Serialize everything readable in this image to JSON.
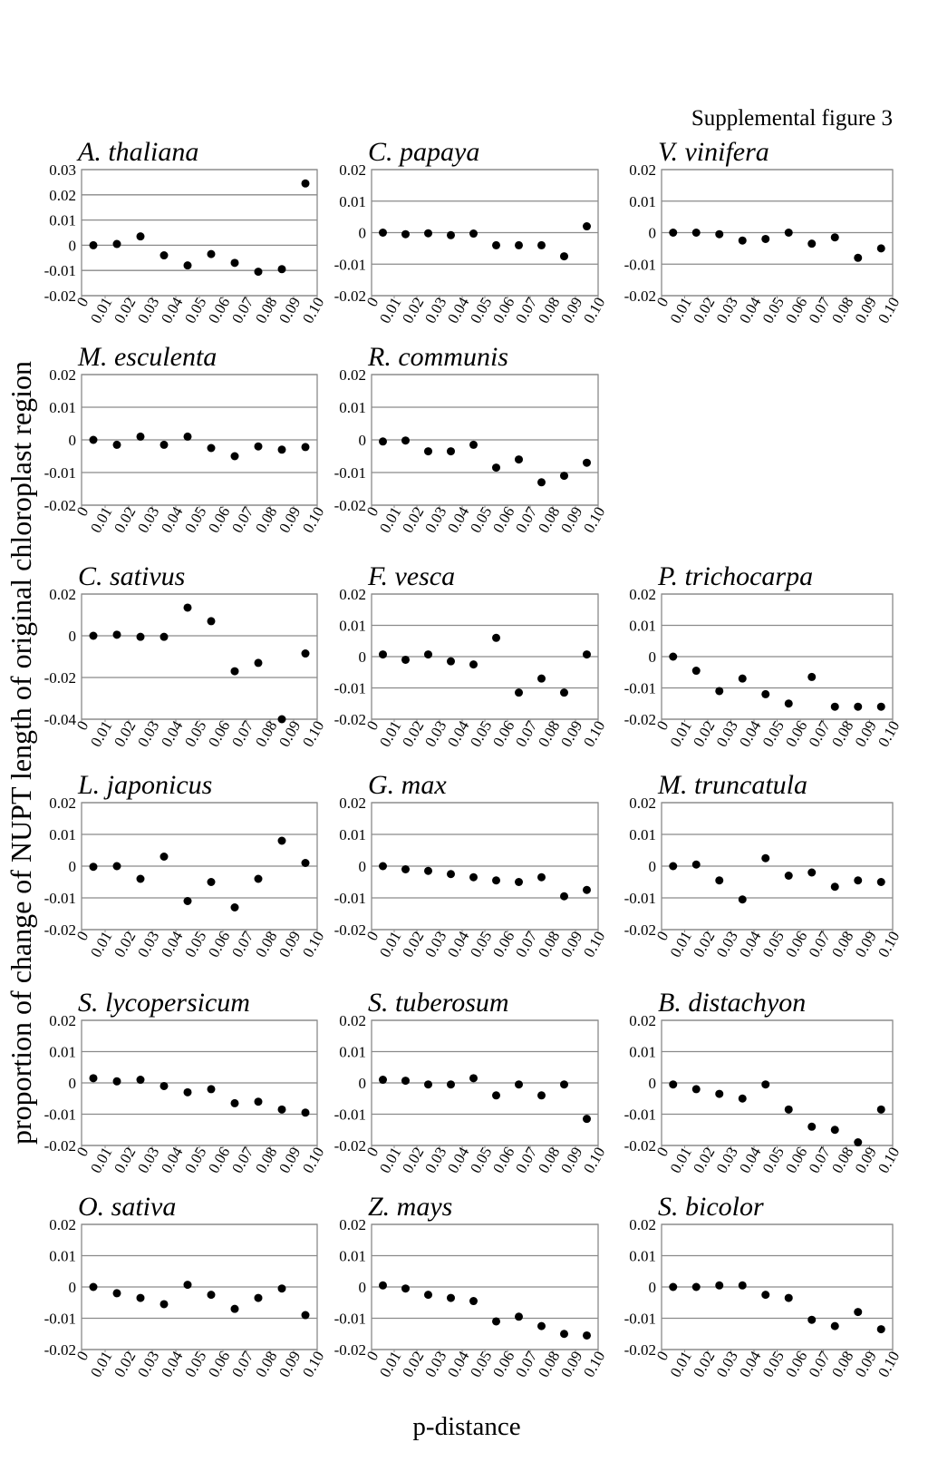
{
  "figure_label": "Supplemental figure 3",
  "ylabel": "proportion of change of NUPT length of original chloroplast region",
  "xlabel": "p-distance",
  "chart_data": [
    {
      "type": "scatter",
      "title": "A. thaliana",
      "x": [
        0.005,
        0.015,
        0.025,
        0.035,
        0.045,
        0.055,
        0.065,
        0.075,
        0.085,
        0.095
      ],
      "y": [
        0,
        0.0005,
        0.0035,
        -0.004,
        -0.008,
        -0.0035,
        -0.007,
        -0.0105,
        -0.0095,
        0.0245
      ],
      "color": "#000000",
      "xlim": [
        0,
        0.1
      ],
      "xticks": [
        0,
        0.01,
        0.02,
        0.03,
        0.04,
        0.05,
        0.06,
        0.07,
        0.08,
        0.09,
        {
          "value": 0.1,
          "label": "0.10"
        }
      ],
      "ylim": [
        -0.02,
        0.03
      ],
      "yticks": [
        0.03,
        0.02,
        0.01,
        0,
        -0.01,
        -0.02
      ],
      "grid": true
    },
    {
      "type": "scatter",
      "title": "C. papaya",
      "x": [
        0.005,
        0.015,
        0.025,
        0.035,
        0.045,
        0.055,
        0.065,
        0.075,
        0.085,
        0.095
      ],
      "y": [
        0,
        -0.0005,
        -0.0002,
        -0.0008,
        -0.0003,
        -0.004,
        -0.004,
        -0.004,
        -0.0075,
        0.002
      ],
      "color": "#000000",
      "xlim": [
        0,
        0.1
      ],
      "xticks": [
        0,
        0.01,
        0.02,
        0.03,
        0.04,
        0.05,
        0.06,
        0.07,
        0.08,
        0.09,
        {
          "value": 0.1,
          "label": "0.10"
        }
      ],
      "ylim": [
        -0.02,
        0.02
      ],
      "yticks": [
        0.02,
        0.01,
        0,
        -0.01,
        -0.02
      ],
      "grid": true
    },
    {
      "type": "scatter",
      "title": "V. vinifera",
      "x": [
        0.005,
        0.015,
        0.025,
        0.035,
        0.045,
        0.055,
        0.065,
        0.075,
        0.085,
        0.095
      ],
      "y": [
        0,
        0,
        -0.0005,
        -0.0025,
        -0.002,
        0,
        -0.0035,
        -0.0015,
        -0.008,
        -0.005
      ],
      "color": "#000000",
      "xlim": [
        0,
        0.1
      ],
      "xticks": [
        0,
        0.01,
        0.02,
        0.03,
        0.04,
        0.05,
        0.06,
        0.07,
        0.08,
        0.09,
        {
          "value": 0.1,
          "label": "0.10"
        }
      ],
      "ylim": [
        -0.02,
        0.02
      ],
      "yticks": [
        0.02,
        0.01,
        0,
        -0.01,
        -0.02
      ],
      "grid": true
    },
    {
      "type": "scatter",
      "title": "M. esculenta",
      "x": [
        0.005,
        0.015,
        0.025,
        0.035,
        0.045,
        0.055,
        0.065,
        0.075,
        0.085,
        0.095
      ],
      "y": [
        0,
        -0.0015,
        0.001,
        -0.0015,
        0.001,
        -0.0025,
        -0.005,
        -0.002,
        -0.003,
        -0.0022
      ],
      "color": "#000000",
      "xlim": [
        0,
        0.1
      ],
      "xticks": [
        0,
        0.01,
        0.02,
        0.03,
        0.04,
        0.05,
        0.06,
        0.07,
        0.08,
        0.09,
        {
          "value": 0.1,
          "label": "0.10"
        }
      ],
      "ylim": [
        -0.02,
        0.02
      ],
      "yticks": [
        0.02,
        0.01,
        0,
        -0.01,
        -0.02
      ],
      "grid": true
    },
    {
      "type": "scatter",
      "title": "R. communis",
      "x": [
        0.005,
        0.015,
        0.025,
        0.035,
        0.045,
        0.055,
        0.065,
        0.075,
        0.085,
        0.095
      ],
      "y": [
        -0.0005,
        -0.0002,
        -0.0035,
        -0.0035,
        -0.0015,
        -0.0085,
        -0.006,
        -0.013,
        -0.011,
        -0.007
      ],
      "color": "#000000",
      "xlim": [
        0,
        0.1
      ],
      "xticks": [
        0,
        0.01,
        0.02,
        0.03,
        0.04,
        0.05,
        0.06,
        0.07,
        0.08,
        0.09,
        {
          "value": 0.1,
          "label": "0.10"
        }
      ],
      "ylim": [
        -0.02,
        0.02
      ],
      "yticks": [
        0.02,
        0.01,
        0,
        -0.01,
        -0.02
      ],
      "grid": true
    },
    {
      "type": "scatter",
      "title": "C. sativus",
      "x": [
        0.005,
        0.015,
        0.025,
        0.035,
        0.045,
        0.055,
        0.065,
        0.075,
        0.085,
        0.095
      ],
      "y": [
        0,
        0.0005,
        -0.0005,
        -0.0005,
        0.0135,
        0.007,
        -0.017,
        -0.013,
        -0.04,
        -0.0085
      ],
      "color": "#000000",
      "xlim": [
        0,
        0.1
      ],
      "xticks": [
        0,
        0.01,
        0.02,
        0.03,
        0.04,
        0.05,
        0.06,
        0.07,
        0.08,
        0.09,
        {
          "value": 0.1,
          "label": "0.10"
        }
      ],
      "ylim": [
        -0.04,
        0.02
      ],
      "yticks": [
        0.02,
        0,
        -0.02,
        -0.04
      ],
      "grid": true
    },
    {
      "type": "scatter",
      "title": "F. vesca",
      "x": [
        0.005,
        0.015,
        0.025,
        0.035,
        0.045,
        0.055,
        0.065,
        0.075,
        0.085,
        0.095
      ],
      "y": [
        0.0007,
        -0.001,
        0.0007,
        -0.0015,
        -0.0025,
        0.006,
        -0.0115,
        -0.007,
        -0.0115,
        0.0007
      ],
      "color": "#000000",
      "xlim": [
        0,
        0.1
      ],
      "xticks": [
        0,
        0.01,
        0.02,
        0.03,
        0.04,
        0.05,
        0.06,
        0.07,
        0.08,
        0.09,
        {
          "value": 0.1,
          "label": "0.10"
        }
      ],
      "ylim": [
        -0.02,
        0.02
      ],
      "yticks": [
        0.02,
        0.01,
        0,
        -0.01,
        -0.02
      ],
      "grid": true
    },
    {
      "type": "scatter",
      "title": "P. trichocarpa",
      "x": [
        0.005,
        0.015,
        0.025,
        0.035,
        0.045,
        0.055,
        0.065,
        0.075,
        0.085,
        0.095
      ],
      "y": [
        0,
        -0.0045,
        -0.011,
        -0.007,
        -0.012,
        -0.015,
        -0.0065,
        -0.016,
        -0.016,
        -0.016
      ],
      "color": "#000000",
      "xlim": [
        0,
        0.1
      ],
      "xticks": [
        0,
        0.01,
        0.02,
        0.03,
        0.04,
        0.05,
        0.06,
        0.07,
        0.08,
        0.09,
        {
          "value": 0.1,
          "label": "0.10"
        }
      ],
      "ylim": [
        -0.02,
        0.02
      ],
      "yticks": [
        0.02,
        0.01,
        0,
        -0.01,
        -0.02
      ],
      "grid": true
    },
    {
      "type": "scatter",
      "title": "L. japonicus",
      "x": [
        0.005,
        0.015,
        0.025,
        0.035,
        0.045,
        0.055,
        0.065,
        0.075,
        0.085,
        0.095
      ],
      "y": [
        -0.0002,
        0,
        -0.004,
        0.003,
        -0.011,
        -0.005,
        -0.013,
        -0.004,
        0.008,
        0.001
      ],
      "color": "#000000",
      "xlim": [
        0,
        0.1
      ],
      "xticks": [
        0,
        0.01,
        0.02,
        0.03,
        0.04,
        0.05,
        0.06,
        0.07,
        0.08,
        0.09,
        {
          "value": 0.1,
          "label": "0.10"
        }
      ],
      "ylim": [
        -0.02,
        0.02
      ],
      "yticks": [
        0.02,
        0.01,
        0,
        -0.01,
        -0.02
      ],
      "grid": true
    },
    {
      "type": "scatter",
      "title": "G. max",
      "x": [
        0.005,
        0.015,
        0.025,
        0.035,
        0.045,
        0.055,
        0.065,
        0.075,
        0.085,
        0.095
      ],
      "y": [
        0,
        -0.001,
        -0.0015,
        -0.0025,
        -0.0035,
        -0.0045,
        -0.005,
        -0.0035,
        -0.0095,
        -0.0075
      ],
      "color": "#000000",
      "xlim": [
        0,
        0.1
      ],
      "xticks": [
        0,
        0.01,
        0.02,
        0.03,
        0.04,
        0.05,
        0.06,
        0.07,
        0.08,
        0.09,
        {
          "value": 0.1,
          "label": "0.10"
        }
      ],
      "ylim": [
        -0.02,
        0.02
      ],
      "yticks": [
        0.02,
        0.01,
        0,
        -0.01,
        -0.02
      ],
      "grid": true
    },
    {
      "type": "scatter",
      "title": "M. truncatula",
      "x": [
        0.005,
        0.015,
        0.025,
        0.035,
        0.045,
        0.055,
        0.065,
        0.075,
        0.085,
        0.095
      ],
      "y": [
        0,
        0.0005,
        -0.0045,
        -0.0105,
        0.0025,
        -0.003,
        -0.002,
        -0.0065,
        -0.0045,
        -0.005
      ],
      "color": "#000000",
      "xlim": [
        0,
        0.1
      ],
      "xticks": [
        0,
        0.01,
        0.02,
        0.03,
        0.04,
        0.05,
        0.06,
        0.07,
        0.08,
        0.09,
        {
          "value": 0.1,
          "label": "0.10"
        }
      ],
      "ylim": [
        -0.02,
        0.02
      ],
      "yticks": [
        0.02,
        0.01,
        0,
        -0.01,
        -0.02
      ],
      "grid": true
    },
    {
      "type": "scatter",
      "title": "S. lycopersicum",
      "x": [
        0.005,
        0.015,
        0.025,
        0.035,
        0.045,
        0.055,
        0.065,
        0.075,
        0.085,
        0.095
      ],
      "y": [
        0.0015,
        0.0005,
        0.001,
        -0.001,
        -0.003,
        -0.002,
        -0.0065,
        -0.006,
        -0.0085,
        -0.0095
      ],
      "color": "#000000",
      "xlim": [
        0,
        0.1
      ],
      "xticks": [
        0,
        0.01,
        0.02,
        0.03,
        0.04,
        0.05,
        0.06,
        0.07,
        0.08,
        0.09,
        {
          "value": 0.1,
          "label": "0.10"
        }
      ],
      "ylim": [
        -0.02,
        0.02
      ],
      "yticks": [
        0.02,
        0.01,
        0,
        -0.01,
        -0.02
      ],
      "grid": true
    },
    {
      "type": "scatter",
      "title": "S. tuberosum",
      "x": [
        0.005,
        0.015,
        0.025,
        0.035,
        0.045,
        0.055,
        0.065,
        0.075,
        0.085,
        0.095
      ],
      "y": [
        0.001,
        0.0007,
        -0.0005,
        -0.0005,
        0.0015,
        -0.004,
        -0.0005,
        -0.004,
        -0.0005,
        -0.0115
      ],
      "color": "#000000",
      "xlim": [
        0,
        0.1
      ],
      "xticks": [
        0,
        0.01,
        0.02,
        0.03,
        0.04,
        0.05,
        0.06,
        0.07,
        0.08,
        0.09,
        {
          "value": 0.1,
          "label": "0.10"
        }
      ],
      "ylim": [
        -0.02,
        0.02
      ],
      "yticks": [
        0.02,
        0.01,
        0,
        -0.01,
        -0.02
      ],
      "grid": true
    },
    {
      "type": "scatter",
      "title": "B. distachyon",
      "x": [
        0.005,
        0.015,
        0.025,
        0.035,
        0.045,
        0.055,
        0.065,
        0.075,
        0.085,
        0.095
      ],
      "y": [
        -0.0005,
        -0.002,
        -0.0035,
        -0.005,
        -0.0005,
        -0.0085,
        -0.014,
        -0.015,
        -0.019,
        -0.0085
      ],
      "color": "#000000",
      "xlim": [
        0,
        0.1
      ],
      "xticks": [
        0,
        0.01,
        0.02,
        0.03,
        0.04,
        0.05,
        0.06,
        0.07,
        0.08,
        0.09,
        {
          "value": 0.1,
          "label": "0.10"
        }
      ],
      "ylim": [
        -0.02,
        0.02
      ],
      "yticks": [
        0.02,
        0.01,
        0,
        -0.01,
        -0.02
      ],
      "grid": true
    },
    {
      "type": "scatter",
      "title": "O. sativa",
      "x": [
        0.005,
        0.015,
        0.025,
        0.035,
        0.045,
        0.055,
        0.065,
        0.075,
        0.085,
        0.095
      ],
      "y": [
        0,
        -0.002,
        -0.0035,
        -0.0055,
        0.0007,
        -0.0025,
        -0.007,
        -0.0035,
        -0.0005,
        -0.009
      ],
      "color": "#000000",
      "xlim": [
        0,
        0.1
      ],
      "xticks": [
        0,
        0.01,
        0.02,
        0.03,
        0.04,
        0.05,
        0.06,
        0.07,
        0.08,
        0.09,
        {
          "value": 0.1,
          "label": "0.10"
        }
      ],
      "ylim": [
        -0.02,
        0.02
      ],
      "yticks": [
        0.02,
        0.01,
        0,
        -0.01,
        -0.02
      ],
      "grid": true
    },
    {
      "type": "scatter",
      "title": "Z. mays",
      "x": [
        0.005,
        0.015,
        0.025,
        0.035,
        0.045,
        0.055,
        0.065,
        0.075,
        0.085,
        0.095
      ],
      "y": [
        0.0005,
        -0.0005,
        -0.0025,
        -0.0035,
        -0.0045,
        -0.011,
        -0.0095,
        -0.0125,
        -0.015,
        -0.0155
      ],
      "color": "#000000",
      "xlim": [
        0,
        0.1
      ],
      "xticks": [
        0,
        0.01,
        0.02,
        0.03,
        0.04,
        0.05,
        0.06,
        0.07,
        0.08,
        0.09,
        {
          "value": 0.1,
          "label": "0.10"
        }
      ],
      "ylim": [
        -0.02,
        0.02
      ],
      "yticks": [
        0.02,
        0.01,
        0,
        -0.01,
        -0.02
      ],
      "grid": true
    },
    {
      "type": "scatter",
      "title": "S. bicolor",
      "x": [
        0.005,
        0.015,
        0.025,
        0.035,
        0.045,
        0.055,
        0.065,
        0.075,
        0.085,
        0.095
      ],
      "y": [
        0,
        0,
        0.0005,
        0.0005,
        -0.0025,
        -0.0035,
        -0.0105,
        -0.0125,
        -0.008,
        -0.0135
      ],
      "color": "#000000",
      "xlim": [
        0,
        0.1
      ],
      "xticks": [
        0,
        0.01,
        0.02,
        0.03,
        0.04,
        0.05,
        0.06,
        0.07,
        0.08,
        0.09,
        {
          "value": 0.1,
          "label": "0.10"
        }
      ],
      "ylim": [
        -0.02,
        0.02
      ],
      "yticks": [
        0.02,
        0.01,
        0,
        -0.01,
        -0.02
      ],
      "grid": true
    }
  ]
}
